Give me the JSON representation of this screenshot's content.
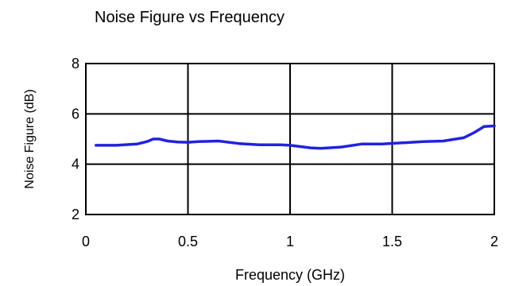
{
  "chart_data": {
    "type": "line",
    "title": "Noise Figure vs Frequency",
    "xlabel": "Frequency (GHz)",
    "ylabel": "Noise Figure  (dB)",
    "xlim": [
      0,
      2
    ],
    "ylim": [
      2,
      8
    ],
    "xticks": [
      "0",
      "0.5",
      "1",
      "1.5",
      "2"
    ],
    "yticks": [
      "2",
      "4",
      "6",
      "8"
    ],
    "grid": true,
    "legend": "none",
    "colors": {
      "line": "#2222dd",
      "grid": "#000000"
    },
    "series": [
      {
        "x": [
          0.05,
          0.15,
          0.25,
          0.3,
          0.33,
          0.36,
          0.4,
          0.45,
          0.5,
          0.55,
          0.65,
          0.75,
          0.85,
          0.95,
          1.0,
          1.05,
          1.1,
          1.15,
          1.25,
          1.35,
          1.45,
          1.55,
          1.65,
          1.75,
          1.85,
          1.9,
          1.95,
          2.0
        ],
        "y": [
          4.75,
          4.75,
          4.8,
          4.9,
          5.0,
          5.0,
          4.92,
          4.88,
          4.87,
          4.9,
          4.92,
          4.82,
          4.77,
          4.77,
          4.75,
          4.7,
          4.65,
          4.63,
          4.68,
          4.8,
          4.8,
          4.85,
          4.9,
          4.92,
          5.05,
          5.25,
          5.5,
          5.52
        ]
      }
    ]
  }
}
